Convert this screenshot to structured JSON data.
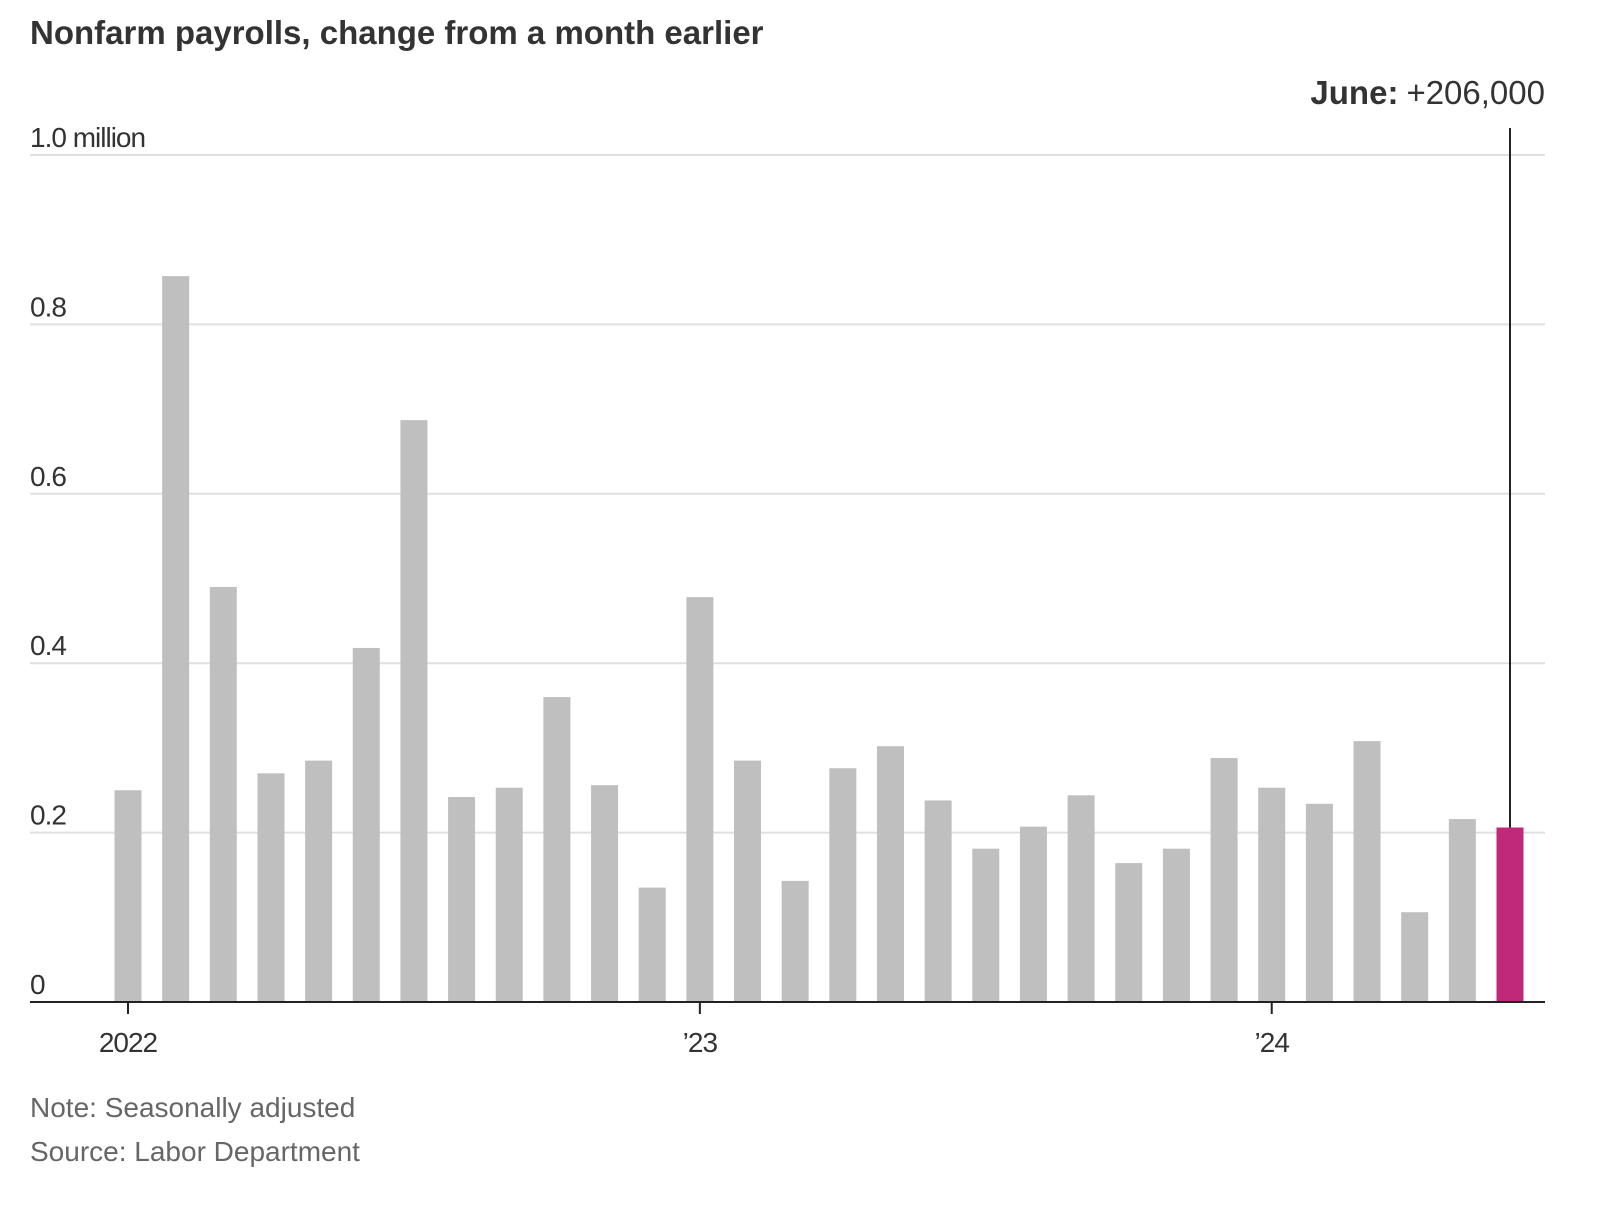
{
  "chart_data": {
    "type": "bar",
    "title": "Nonfarm payrolls, change from a month earlier",
    "categories": [
      "2022",
      null,
      null,
      null,
      null,
      null,
      null,
      null,
      null,
      null,
      null,
      null,
      "’23",
      null,
      null,
      null,
      null,
      null,
      null,
      null,
      null,
      null,
      null,
      null,
      "’24",
      null,
      null,
      null,
      null,
      null
    ],
    "values": [
      0.25,
      0.857,
      0.49,
      0.27,
      0.285,
      0.418,
      0.687,
      0.242,
      0.253,
      0.36,
      0.256,
      0.135,
      0.478,
      0.285,
      0.143,
      0.276,
      0.302,
      0.238,
      0.181,
      0.207,
      0.244,
      0.164,
      0.181,
      0.288,
      0.253,
      0.234,
      0.308,
      0.106,
      0.216,
      0.206
    ],
    "color": "#bfbfbf",
    "highlight_color": "#c0297a",
    "annotation": {
      "label": "June:",
      "value": "+206,000"
    },
    "ylim": [
      0,
      1.0
    ],
    "yticks": [
      0,
      0.2,
      0.4,
      0.6,
      0.8,
      {
        "value": 1.0,
        "label": "1.0 million"
      }
    ],
    "grid": true,
    "note": "Note: Seasonally adjusted",
    "source": "Source: Labor Department"
  }
}
